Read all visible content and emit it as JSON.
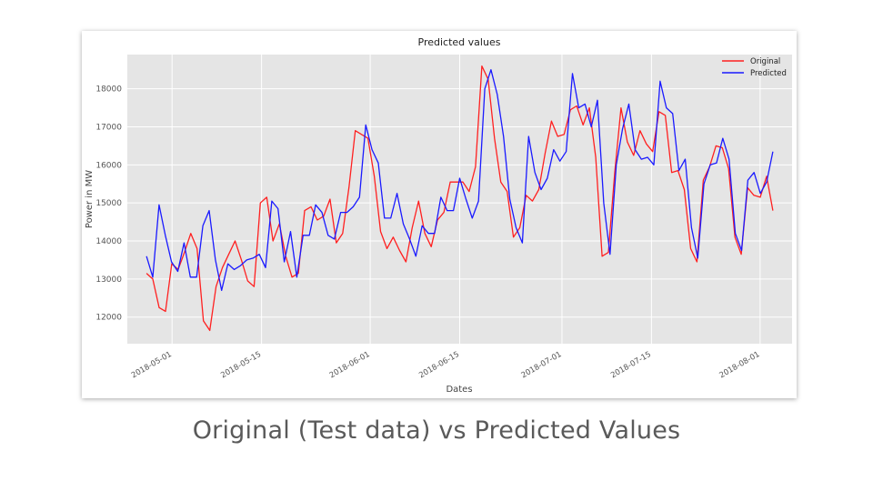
{
  "slide": {
    "caption": "Original (Test data) vs Predicted Values"
  },
  "colors": {
    "original": "#ff2020",
    "predicted": "#1a1aff",
    "plot_background": "#e5e5e5",
    "grid": "#ffffff"
  },
  "chart_data": {
    "type": "line",
    "title": "Predicted values",
    "xlabel": "Dates",
    "ylabel": "Power in MW",
    "x_start": "2018-04-27",
    "x_end": "2018-08-03",
    "xlim": [
      "2018-04-24",
      "2018-08-06"
    ],
    "ylim": [
      11300,
      18900
    ],
    "yticks": [
      12000,
      13000,
      14000,
      15000,
      16000,
      17000,
      18000
    ],
    "xticks": [
      "2018-05-01",
      "2018-05-15",
      "2018-06-01",
      "2018-06-15",
      "2018-07-01",
      "2018-07-15",
      "2018-08-01"
    ],
    "grid": true,
    "legend_position": "top-right",
    "series": [
      {
        "name": "Original",
        "color": "#ff2020",
        "values": [
          13150,
          13000,
          12250,
          12150,
          13400,
          13250,
          13700,
          14200,
          13800,
          11900,
          11650,
          12800,
          13300,
          13650,
          14000,
          13500,
          12950,
          12800,
          15000,
          15150,
          14000,
          14450,
          13600,
          13050,
          13150,
          14800,
          14900,
          14550,
          14650,
          15100,
          13950,
          14200,
          15400,
          16900,
          16800,
          16700,
          15700,
          14250,
          13800,
          14100,
          13750,
          13450,
          14350,
          15050,
          14200,
          13850,
          14550,
          14750,
          15550,
          15550,
          15550,
          15300,
          15950,
          18600,
          18250,
          16700,
          15550,
          15300,
          14100,
          14350,
          15200,
          15050,
          15350,
          16300,
          17150,
          16750,
          16800,
          17450,
          17550,
          17050,
          17500,
          16200,
          13600,
          13700,
          15800,
          17500,
          16600,
          16250,
          16900,
          16550,
          16350,
          17400,
          17300,
          15800,
          15850,
          15350,
          13800,
          13450,
          15600,
          15950,
          16500,
          16450,
          15900,
          14100,
          13650,
          15400,
          15200,
          15150,
          15700,
          14800
        ]
      },
      {
        "name": "Predicted",
        "color": "#1a1aff",
        "values": [
          13600,
          13050,
          14950,
          14150,
          13450,
          13200,
          13950,
          13050,
          13050,
          14400,
          14800,
          13500,
          12700,
          13400,
          13250,
          13350,
          13500,
          13550,
          13650,
          13300,
          15050,
          14850,
          13450,
          14250,
          13050,
          14150,
          14150,
          14950,
          14750,
          14150,
          14050,
          14750,
          14750,
          14900,
          15150,
          17050,
          16400,
          16050,
          14600,
          14600,
          15250,
          14450,
          14050,
          13600,
          14400,
          14200,
          14200,
          15150,
          14800,
          14800,
          15650,
          15100,
          14600,
          15050,
          18000,
          18500,
          17850,
          16750,
          15100,
          14350,
          13950,
          16750,
          15800,
          15350,
          15650,
          16400,
          16100,
          16350,
          18400,
          17500,
          17600,
          17000,
          17700,
          15000,
          13650,
          16000,
          16950,
          17600,
          16400,
          16150,
          16200,
          16000,
          18200,
          17500,
          17350,
          15850,
          16150,
          14350,
          13550,
          15500,
          16000,
          16050,
          16700,
          16150,
          14200,
          13750,
          15600,
          15800,
          15250,
          15550,
          16350
        ]
      }
    ]
  }
}
